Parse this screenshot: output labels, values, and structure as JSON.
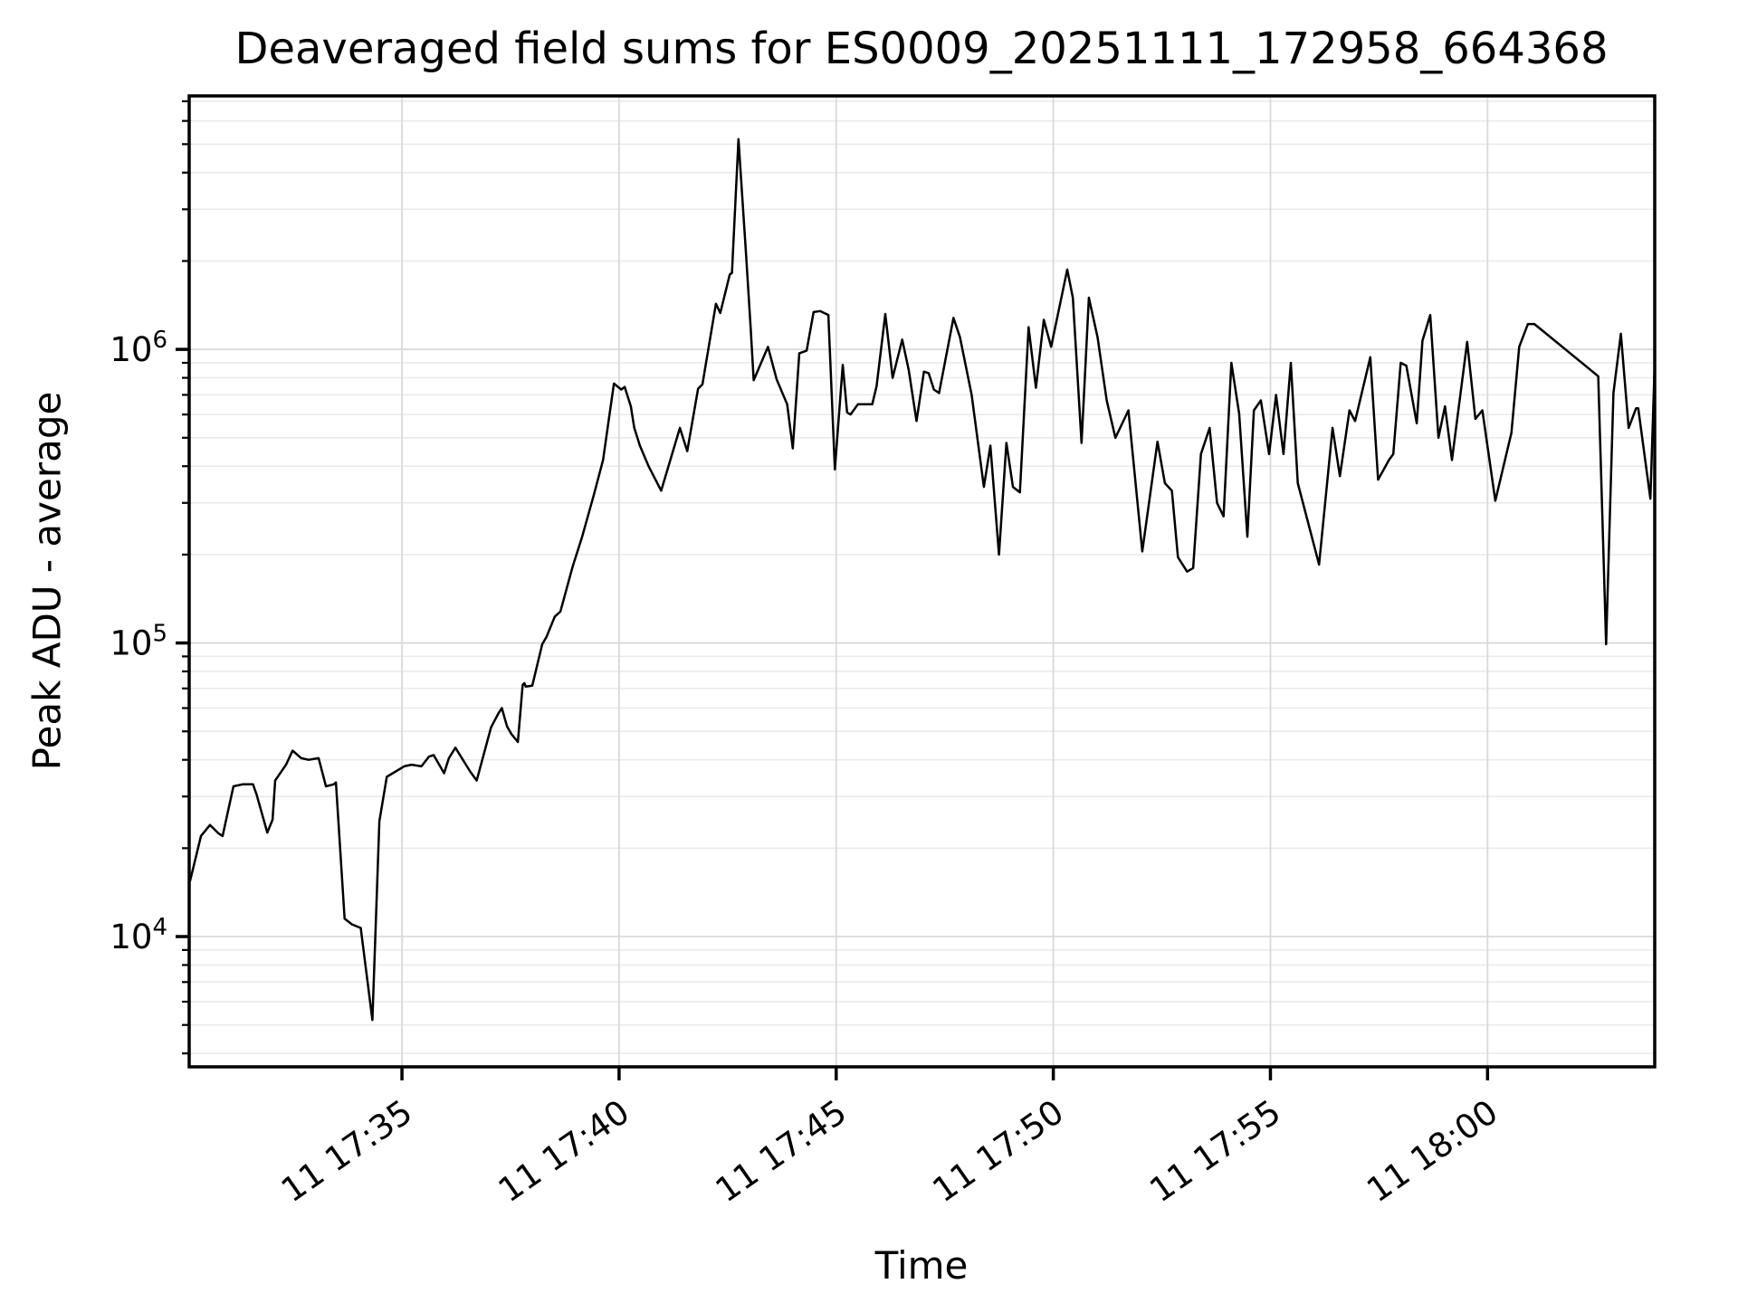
{
  "figure": {
    "title": "Deaveraged field sums for ES0009_20251111_172958_664368",
    "xlabel": "Time",
    "ylabel": "Peak ADU - average"
  },
  "chart_data": {
    "type": "line",
    "title": "Deaveraged field sums for ES0009_20251111_172958_664368",
    "xlabel": "Time",
    "ylabel": "Peak ADU - average",
    "yscale": "log",
    "grid": true,
    "legend": "none",
    "background": "#ffffff",
    "line_color": "#000000",
    "spine_color": "#000000",
    "grid_major_color": "#d9d9d9",
    "grid_minor_color": "#e9e9e9",
    "ylim": [
      3600,
      7300000
    ],
    "xlim_minutes_after_1700": [
      30.1,
      63.85
    ],
    "x_ticks": [
      {
        "minutes": 35,
        "label": "11 17:35"
      },
      {
        "minutes": 40,
        "label": "11 17:40"
      },
      {
        "minutes": 45,
        "label": "11 17:45"
      },
      {
        "minutes": 50,
        "label": "11 17:50"
      },
      {
        "minutes": 55,
        "label": "11 17:55"
      },
      {
        "minutes": 60,
        "label": "11 18:00"
      }
    ],
    "y_ticks": [
      {
        "value": 10000,
        "mantissa": "10",
        "exponent": "4"
      },
      {
        "value": 100000,
        "mantissa": "10",
        "exponent": "5"
      },
      {
        "value": 1000000,
        "mantissa": "10",
        "exponent": "6"
      }
    ],
    "series": [
      {
        "name": "peak_adu_minus_average",
        "color": "#000000",
        "points_minutes_value": [
          [
            30.12,
            15500
          ],
          [
            30.17,
            16600
          ],
          [
            30.37,
            22000
          ],
          [
            30.58,
            24000
          ],
          [
            30.77,
            22500
          ],
          [
            30.87,
            22000
          ],
          [
            31.12,
            32500
          ],
          [
            31.33,
            33000
          ],
          [
            31.57,
            33000
          ],
          [
            31.65,
            30500
          ],
          [
            31.9,
            22600
          ],
          [
            32.02,
            25000
          ],
          [
            32.08,
            34000
          ],
          [
            32.33,
            38500
          ],
          [
            32.48,
            43000
          ],
          [
            32.68,
            40500
          ],
          [
            32.85,
            40000
          ],
          [
            33.08,
            40500
          ],
          [
            33.25,
            32500
          ],
          [
            33.43,
            33000
          ],
          [
            33.48,
            33500
          ],
          [
            33.68,
            11500
          ],
          [
            33.85,
            11000
          ],
          [
            34.05,
            10700
          ],
          [
            34.32,
            5200
          ],
          [
            34.48,
            24700
          ],
          [
            34.65,
            35000
          ],
          [
            35.05,
            38000
          ],
          [
            35.22,
            38500
          ],
          [
            35.45,
            38000
          ],
          [
            35.62,
            41000
          ],
          [
            35.73,
            41500
          ],
          [
            35.97,
            36000
          ],
          [
            36.08,
            40500
          ],
          [
            36.23,
            44000
          ],
          [
            36.57,
            36500
          ],
          [
            36.72,
            34000
          ],
          [
            36.88,
            41500
          ],
          [
            37.05,
            51500
          ],
          [
            37.22,
            57500
          ],
          [
            37.3,
            60000
          ],
          [
            37.42,
            52000
          ],
          [
            37.52,
            49000
          ],
          [
            37.67,
            46000
          ],
          [
            37.78,
            72000
          ],
          [
            37.82,
            73000
          ],
          [
            37.85,
            71000
          ],
          [
            38.0,
            71500
          ],
          [
            38.23,
            99000
          ],
          [
            38.33,
            105000
          ],
          [
            38.52,
            123000
          ],
          [
            38.65,
            128000
          ],
          [
            38.93,
            182000
          ],
          [
            39.15,
            230000
          ],
          [
            39.42,
            320000
          ],
          [
            39.63,
            420000
          ],
          [
            39.88,
            765000
          ],
          [
            40.05,
            730000
          ],
          [
            40.13,
            745000
          ],
          [
            40.27,
            640000
          ],
          [
            40.35,
            540000
          ],
          [
            40.48,
            470000
          ],
          [
            40.68,
            400000
          ],
          [
            40.97,
            330000
          ],
          [
            41.4,
            540000
          ],
          [
            41.57,
            450000
          ],
          [
            41.82,
            735000
          ],
          [
            41.92,
            760000
          ],
          [
            42.23,
            1430000
          ],
          [
            42.33,
            1330000
          ],
          [
            42.55,
            1800000
          ],
          [
            42.6,
            1820000
          ],
          [
            42.75,
            5200000
          ],
          [
            42.92,
            2150000
          ],
          [
            43.03,
            1180000
          ],
          [
            43.1,
            785000
          ],
          [
            43.43,
            1020000
          ],
          [
            43.63,
            790000
          ],
          [
            43.87,
            650000
          ],
          [
            44.0,
            460000
          ],
          [
            44.15,
            970000
          ],
          [
            44.32,
            990000
          ],
          [
            44.48,
            1340000
          ],
          [
            44.63,
            1350000
          ],
          [
            44.82,
            1310000
          ],
          [
            44.97,
            390000
          ],
          [
            45.15,
            885000
          ],
          [
            45.25,
            610000
          ],
          [
            45.33,
            600000
          ],
          [
            45.5,
            650000
          ],
          [
            45.83,
            650000
          ],
          [
            45.93,
            750000
          ],
          [
            46.13,
            1320000
          ],
          [
            46.3,
            800000
          ],
          [
            46.52,
            1080000
          ],
          [
            46.67,
            850000
          ],
          [
            46.85,
            570000
          ],
          [
            47.02,
            840000
          ],
          [
            47.13,
            830000
          ],
          [
            47.25,
            730000
          ],
          [
            47.37,
            710000
          ],
          [
            47.7,
            1280000
          ],
          [
            47.85,
            1100000
          ],
          [
            48.12,
            700000
          ],
          [
            48.4,
            340000
          ],
          [
            48.55,
            470000
          ],
          [
            48.75,
            200000
          ],
          [
            48.92,
            480000
          ],
          [
            49.07,
            340000
          ],
          [
            49.23,
            326000
          ],
          [
            49.43,
            1190000
          ],
          [
            49.6,
            740000
          ],
          [
            49.78,
            1260000
          ],
          [
            49.95,
            1020000
          ],
          [
            50.32,
            1870000
          ],
          [
            50.45,
            1500000
          ],
          [
            50.65,
            480000
          ],
          [
            50.82,
            1500000
          ],
          [
            51.02,
            1100000
          ],
          [
            51.23,
            670000
          ],
          [
            51.43,
            500000
          ],
          [
            51.73,
            620000
          ],
          [
            52.05,
            205000
          ],
          [
            52.4,
            485000
          ],
          [
            52.57,
            350000
          ],
          [
            52.73,
            330000
          ],
          [
            52.87,
            196000
          ],
          [
            53.08,
            175000
          ],
          [
            53.22,
            180000
          ],
          [
            53.4,
            440000
          ],
          [
            53.6,
            540000
          ],
          [
            53.77,
            300000
          ],
          [
            53.92,
            270000
          ],
          [
            54.1,
            900000
          ],
          [
            54.28,
            605000
          ],
          [
            54.47,
            230000
          ],
          [
            54.62,
            620000
          ],
          [
            54.78,
            670000
          ],
          [
            54.97,
            440000
          ],
          [
            55.13,
            700000
          ],
          [
            55.3,
            440000
          ],
          [
            55.47,
            900000
          ],
          [
            55.63,
            350000
          ],
          [
            56.12,
            185000
          ],
          [
            56.43,
            540000
          ],
          [
            56.6,
            370000
          ],
          [
            56.82,
            620000
          ],
          [
            56.95,
            570000
          ],
          [
            57.3,
            940000
          ],
          [
            57.48,
            360000
          ],
          [
            57.73,
            420000
          ],
          [
            57.83,
            440000
          ],
          [
            58.0,
            900000
          ],
          [
            58.13,
            880000
          ],
          [
            58.37,
            560000
          ],
          [
            58.5,
            1070000
          ],
          [
            58.68,
            1310000
          ],
          [
            58.87,
            500000
          ],
          [
            59.02,
            640000
          ],
          [
            59.18,
            420000
          ],
          [
            59.53,
            1060000
          ],
          [
            59.72,
            580000
          ],
          [
            59.88,
            620000
          ],
          [
            60.18,
            305000
          ],
          [
            60.55,
            520000
          ],
          [
            60.73,
            1020000
          ],
          [
            60.93,
            1220000
          ],
          [
            61.08,
            1220000
          ],
          [
            62.55,
            810000
          ],
          [
            62.73,
            99000
          ],
          [
            62.9,
            710000
          ],
          [
            63.07,
            1130000
          ],
          [
            63.25,
            540000
          ],
          [
            63.42,
            630000
          ],
          [
            63.47,
            630000
          ],
          [
            63.75,
            310000
          ],
          [
            63.85,
            900000
          ]
        ]
      }
    ]
  }
}
